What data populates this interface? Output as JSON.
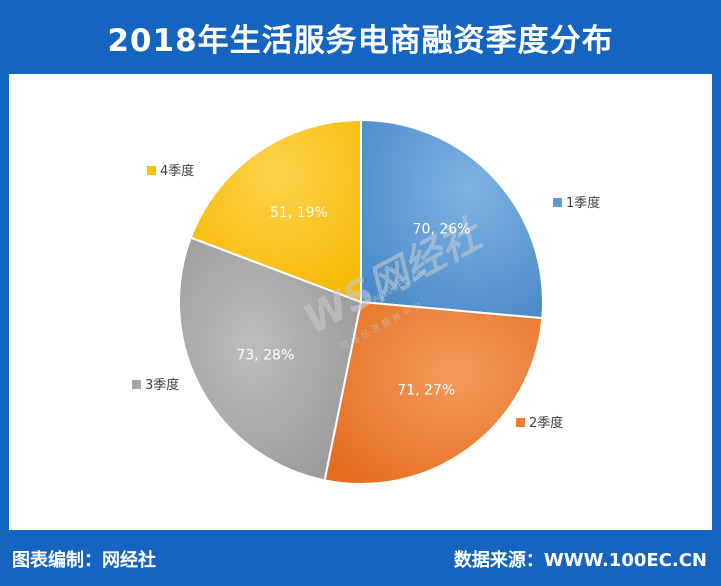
{
  "title": "2018年生活服务电商融资季度分布",
  "footer": {
    "left": "图表编制：网经社",
    "right": "数据来源：WWW.100EC.CN"
  },
  "watermark": {
    "mark": "WS网经社",
    "url": "www.100EC.CN",
    "tagline": "网 络 经 济 服 务 平 台"
  },
  "chart_data": {
    "type": "pie",
    "title": "2018年生活服务电商融资季度分布",
    "categories": [
      "1季度",
      "2季度",
      "3季度",
      "4季度"
    ],
    "values": [
      70,
      71,
      73,
      51
    ],
    "percents": [
      "26%",
      "27%",
      "28%",
      "19%"
    ],
    "data_labels": [
      "70, 26%",
      "71, 27%",
      "73, 28%",
      "51, 19%"
    ],
    "colors": [
      "#5b9bd5",
      "#ed7d31",
      "#a5a5a5",
      "#ffc000"
    ],
    "start_angle": "12 o'clock",
    "direction": "clockwise",
    "legend": "labels next to slices"
  }
}
